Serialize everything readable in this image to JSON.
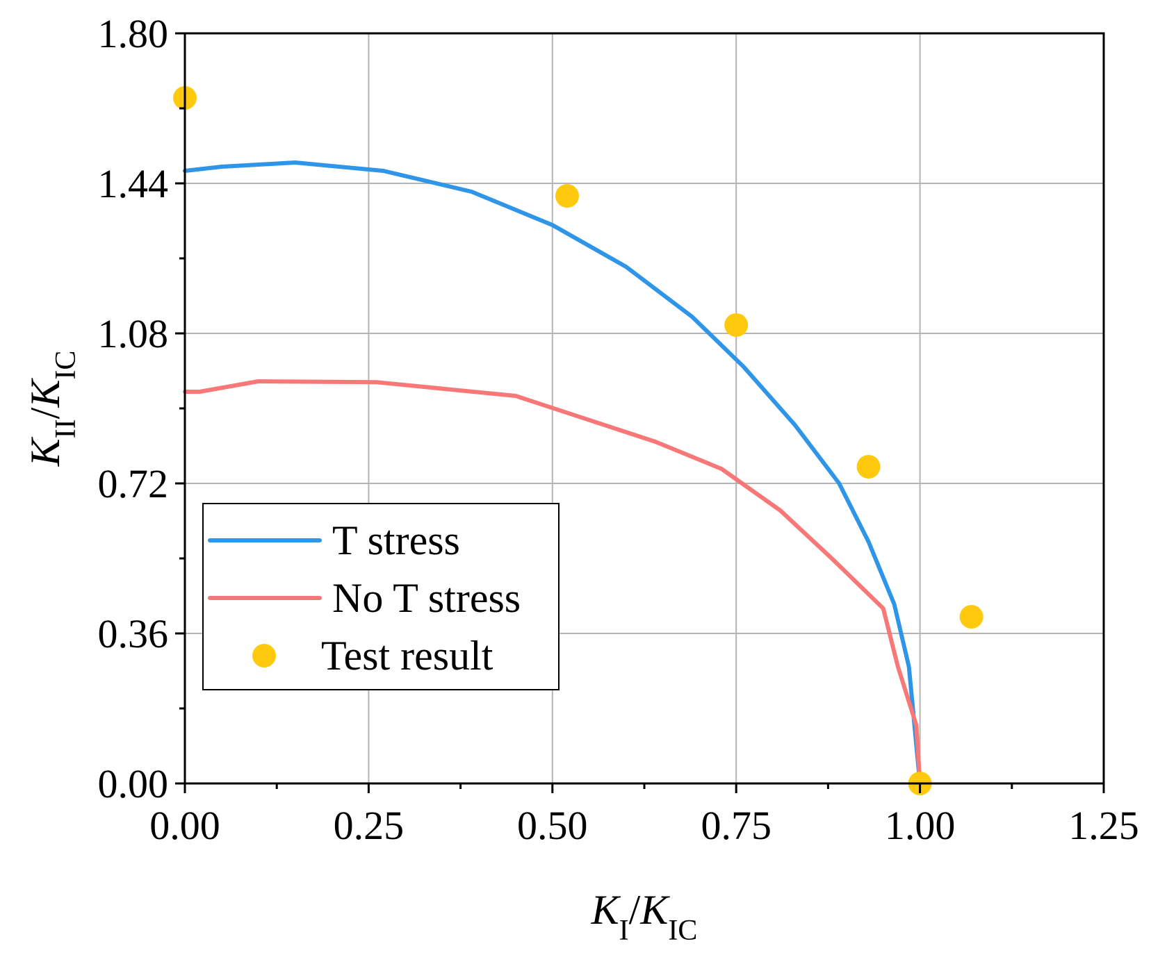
{
  "chart_data": {
    "type": "line",
    "title": "",
    "xlabel": {
      "main": "K",
      "sub": "I",
      "sep": "/",
      "main2": "K",
      "sub2": "IC"
    },
    "ylabel": {
      "main": "K",
      "sub": "II",
      "sep": "/",
      "main2": "K",
      "sub2": "IC"
    },
    "xlim": [
      0,
      1.25
    ],
    "ylim": [
      0,
      1.8
    ],
    "xticks": [
      0,
      0.25,
      0.5,
      0.75,
      1.0,
      1.25
    ],
    "yticks": [
      0,
      0.36,
      0.72,
      1.08,
      1.44,
      1.8
    ],
    "xtick_labels": [
      "0.00",
      "0.25",
      "0.50",
      "0.75",
      "1.00",
      "1.25"
    ],
    "ytick_labels": [
      "0.00",
      "0.36",
      "0.72",
      "1.08",
      "1.44",
      "1.80"
    ],
    "grid": true,
    "legend_position": "lower-left",
    "series": [
      {
        "name": "T stress",
        "kind": "line",
        "color": "#2f95e8",
        "x": [
          0.0,
          0.05,
          0.1,
          0.15,
          0.27,
          0.39,
          0.5,
          0.6,
          0.69,
          0.76,
          0.83,
          0.89,
          0.93,
          0.965,
          0.985,
          1.0
        ],
        "y": [
          1.47,
          1.48,
          1.485,
          1.49,
          1.47,
          1.42,
          1.34,
          1.24,
          1.12,
          1.0,
          0.86,
          0.72,
          0.58,
          0.43,
          0.28,
          0.0
        ]
      },
      {
        "name": "No T stress",
        "kind": "line",
        "color": "#f87777",
        "x": [
          0.0,
          0.02,
          0.1,
          0.26,
          0.45,
          0.64,
          0.73,
          0.81,
          0.88,
          0.95,
          0.97,
          0.995,
          1.0
        ],
        "y": [
          0.94,
          0.94,
          0.965,
          0.963,
          0.93,
          0.82,
          0.755,
          0.655,
          0.54,
          0.42,
          0.28,
          0.14,
          0.0
        ]
      },
      {
        "name": "Test result",
        "kind": "scatter",
        "color": "#ffc90e",
        "x": [
          0.0,
          0.52,
          0.75,
          0.93,
          1.07,
          1.0
        ],
        "y": [
          1.645,
          1.41,
          1.1,
          0.76,
          0.4,
          0.0
        ]
      }
    ]
  }
}
